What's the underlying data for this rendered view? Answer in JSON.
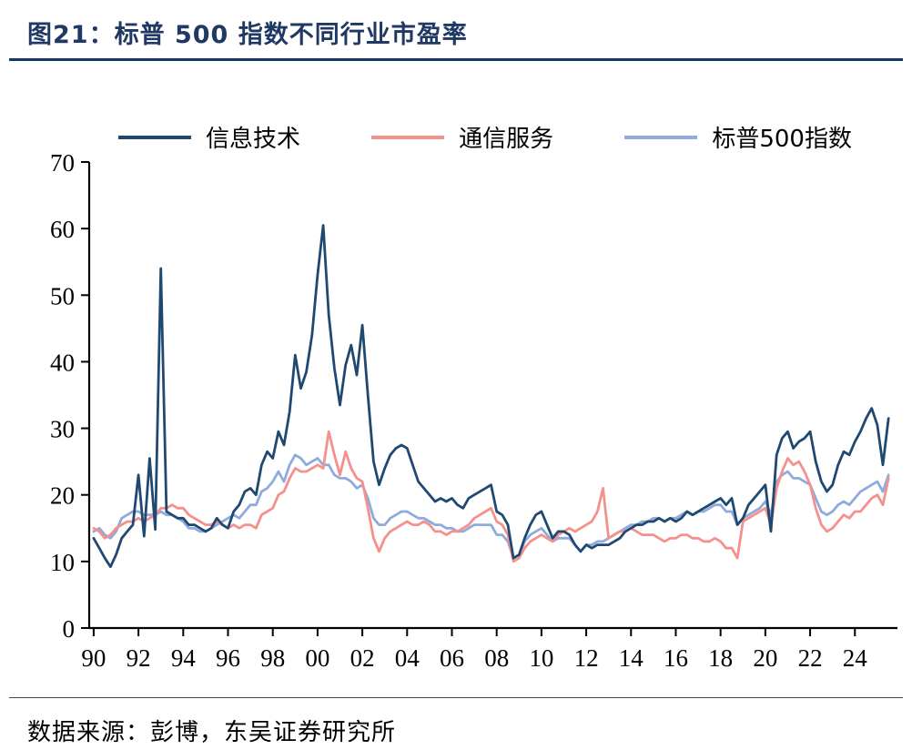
{
  "title": "图21：标普 500 指数不同行业市盈率",
  "source": "数据来源：彭博，东吴证券研究所",
  "colors": {
    "title_navy": "#1F3864",
    "rule_navy": "#17375E",
    "axis": "#000000",
    "series_info_tech": "#1F4971",
    "series_comm_services": "#F4918D",
    "series_sp500": "#8FAADC"
  },
  "chart_data": {
    "type": "line",
    "title": "图21：标普 500 指数不同行业市盈率",
    "xlabel": "",
    "ylabel": "",
    "grid": false,
    "legend_position": "top",
    "x_unit": "year",
    "x_start": 1990,
    "x_step": 0.25,
    "xlim": [
      1989.8,
      2025.9
    ],
    "ylim": [
      0,
      70
    ],
    "y_ticks": [
      0,
      10,
      20,
      30,
      40,
      50,
      60,
      70
    ],
    "x_ticks": [
      {
        "year": 1990,
        "label": "90"
      },
      {
        "year": 1992,
        "label": "92"
      },
      {
        "year": 1994,
        "label": "94"
      },
      {
        "year": 1996,
        "label": "96"
      },
      {
        "year": 1998,
        "label": "98"
      },
      {
        "year": 2000,
        "label": "00"
      },
      {
        "year": 2002,
        "label": "02"
      },
      {
        "year": 2004,
        "label": "04"
      },
      {
        "year": 2006,
        "label": "06"
      },
      {
        "year": 2008,
        "label": "08"
      },
      {
        "year": 2010,
        "label": "10"
      },
      {
        "year": 2012,
        "label": "12"
      },
      {
        "year": 2014,
        "label": "14"
      },
      {
        "year": 2016,
        "label": "16"
      },
      {
        "year": 2018,
        "label": "18"
      },
      {
        "year": 2020,
        "label": "20"
      },
      {
        "year": 2022,
        "label": "22"
      },
      {
        "year": 2024,
        "label": "24"
      }
    ],
    "series": [
      {
        "name": "信息技术",
        "color": "#1F4971",
        "values": [
          13.5,
          12.0,
          10.5,
          9.2,
          11.0,
          13.5,
          14.5,
          15.5,
          23.0,
          13.8,
          25.5,
          14.8,
          54.0,
          17.5,
          17.0,
          16.5,
          16.5,
          15.5,
          15.5,
          15.0,
          14.5,
          15.0,
          16.5,
          15.5,
          15.0,
          17.5,
          18.5,
          20.5,
          21.0,
          20.0,
          24.5,
          26.5,
          25.5,
          29.5,
          27.5,
          32.5,
          41.0,
          36.0,
          38.5,
          44.0,
          53.0,
          60.5,
          47.0,
          39.0,
          33.5,
          39.5,
          42.5,
          38.0,
          45.5,
          35.0,
          25.0,
          21.5,
          24.0,
          26.0,
          27.0,
          27.5,
          27.0,
          24.5,
          22.0,
          21.0,
          20.0,
          19.0,
          19.5,
          19.0,
          19.5,
          18.5,
          18.0,
          19.5,
          20.0,
          20.5,
          21.0,
          21.5,
          17.5,
          17.0,
          15.5,
          10.5,
          11.0,
          13.5,
          15.5,
          17.0,
          17.5,
          15.5,
          13.5,
          14.5,
          14.5,
          14.0,
          12.5,
          11.5,
          12.5,
          12.0,
          12.5,
          12.5,
          12.5,
          13.0,
          13.5,
          14.5,
          15.0,
          15.5,
          15.5,
          16.0,
          16.0,
          16.5,
          16.0,
          16.5,
          16.0,
          16.5,
          17.5,
          17.0,
          17.5,
          18.0,
          18.5,
          19.0,
          19.5,
          18.5,
          19.5,
          15.5,
          16.5,
          18.5,
          19.5,
          20.5,
          21.5,
          14.5,
          26.0,
          28.5,
          29.5,
          27.0,
          28.0,
          28.5,
          29.5,
          25.0,
          22.0,
          20.5,
          21.5,
          24.5,
          26.5,
          26.0,
          28.0,
          29.5,
          31.5,
          33.0,
          30.5,
          24.5,
          31.5
        ]
      },
      {
        "name": "通信服务",
        "color": "#F4918D",
        "values": [
          15.0,
          14.5,
          13.5,
          14.0,
          15.0,
          15.5,
          16.0,
          16.0,
          16.5,
          16.0,
          16.5,
          17.0,
          18.0,
          18.0,
          18.5,
          18.0,
          18.0,
          17.0,
          16.5,
          16.0,
          15.5,
          15.5,
          16.0,
          15.5,
          15.0,
          15.5,
          15.0,
          15.5,
          15.5,
          15.0,
          17.0,
          17.5,
          18.0,
          20.0,
          20.5,
          22.5,
          24.0,
          23.5,
          23.5,
          24.0,
          24.5,
          24.0,
          29.5,
          26.0,
          23.0,
          26.5,
          24.0,
          22.5,
          22.0,
          18.0,
          13.5,
          11.5,
          13.5,
          14.5,
          15.0,
          15.5,
          16.0,
          15.5,
          15.5,
          16.0,
          15.5,
          14.5,
          14.5,
          14.0,
          14.5,
          14.5,
          15.0,
          15.5,
          16.5,
          17.0,
          17.5,
          18.0,
          16.0,
          15.5,
          14.0,
          10.0,
          10.5,
          12.0,
          13.0,
          13.5,
          14.0,
          13.5,
          13.0,
          14.0,
          14.5,
          15.0,
          14.5,
          15.0,
          15.5,
          16.0,
          17.5,
          21.0,
          13.5,
          14.0,
          14.5,
          14.5,
          15.0,
          14.5,
          14.0,
          14.0,
          14.0,
          13.5,
          13.0,
          13.5,
          13.5,
          14.0,
          14.0,
          13.5,
          13.5,
          13.0,
          13.0,
          13.5,
          13.0,
          12.0,
          12.0,
          10.5,
          16.0,
          16.5,
          17.0,
          17.5,
          18.0,
          15.5,
          21.0,
          23.5,
          25.5,
          24.5,
          25.0,
          23.5,
          21.5,
          18.0,
          15.5,
          14.5,
          15.0,
          16.0,
          17.0,
          16.5,
          17.5,
          17.5,
          18.5,
          19.5,
          20.0,
          18.5,
          22.5
        ]
      },
      {
        "name": "标普500指数",
        "color": "#8FAADC",
        "values": [
          14.5,
          15.0,
          14.0,
          13.5,
          14.5,
          16.5,
          17.0,
          17.5,
          17.5,
          17.0,
          17.0,
          17.0,
          17.5,
          17.0,
          17.0,
          16.5,
          16.0,
          15.0,
          15.0,
          14.5,
          14.5,
          15.0,
          15.5,
          16.0,
          16.5,
          17.0,
          16.5,
          17.5,
          18.5,
          18.5,
          20.5,
          21.0,
          22.0,
          23.5,
          22.0,
          24.5,
          26.0,
          25.5,
          24.5,
          25.0,
          25.5,
          24.5,
          24.5,
          23.0,
          22.5,
          22.5,
          22.0,
          21.0,
          21.5,
          19.5,
          16.5,
          15.5,
          15.5,
          16.5,
          17.0,
          17.5,
          17.5,
          17.0,
          16.5,
          16.5,
          16.0,
          15.5,
          15.5,
          15.0,
          15.0,
          14.5,
          14.5,
          15.0,
          15.5,
          15.5,
          15.5,
          15.5,
          14.0,
          14.0,
          13.0,
          10.5,
          11.0,
          13.0,
          14.0,
          14.5,
          15.0,
          14.0,
          13.0,
          13.5,
          13.5,
          13.5,
          12.5,
          11.5,
          12.5,
          12.5,
          13.0,
          13.0,
          13.5,
          14.0,
          14.5,
          15.0,
          15.5,
          15.5,
          16.0,
          16.0,
          16.5,
          16.5,
          16.0,
          16.5,
          16.5,
          17.0,
          17.5,
          17.0,
          17.5,
          17.5,
          18.0,
          18.5,
          18.5,
          17.5,
          17.5,
          15.5,
          16.5,
          17.0,
          17.5,
          18.0,
          19.0,
          17.0,
          22.0,
          23.0,
          23.5,
          22.5,
          22.5,
          22.0,
          21.5,
          19.5,
          17.5,
          17.0,
          17.5,
          18.5,
          19.0,
          18.5,
          19.5,
          20.5,
          21.0,
          21.5,
          22.0,
          20.5,
          23.0
        ]
      }
    ]
  }
}
